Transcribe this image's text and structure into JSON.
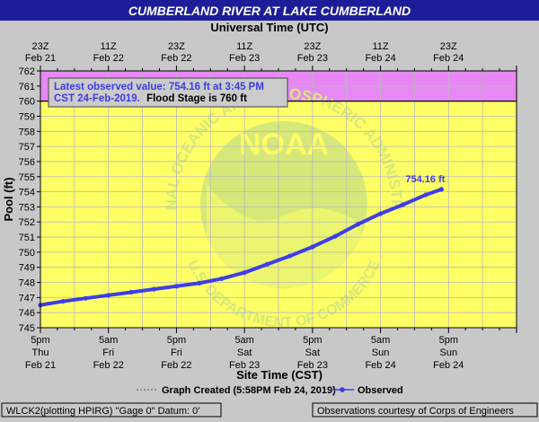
{
  "colors": {
    "page_bg": "#c8c8c8",
    "title_bar": "#1d1d99",
    "title_text": "#ffffff",
    "plot_bg": "#ffff66",
    "flood_band": "#e788f4",
    "series": "#3d3de8",
    "grid": "#b9b9b9",
    "noaa_watermark": "#d6e87a",
    "flood_line": "#000000"
  },
  "chart_data": {
    "type": "line",
    "title": "CUMBERLAND RIVER AT LAKE CUMBERLAND",
    "top_axis_title": "Universal Time (UTC)",
    "xlabel": "Site Time (CST)",
    "ylabel": "Pool (ft)",
    "ylim": [
      745,
      762
    ],
    "yticks": [
      745,
      746,
      747,
      748,
      749,
      750,
      751,
      752,
      753,
      754,
      755,
      756,
      757,
      758,
      759,
      760,
      761,
      762
    ],
    "xlim_hours": [
      0,
      84
    ],
    "x_units": "hours since Thu Feb 21 5pm CST",
    "bottom_ticks": [
      {
        "hour": 0,
        "time": "5pm",
        "day": "Thu",
        "date": "Feb 21"
      },
      {
        "hour": 12,
        "time": "5am",
        "day": "Fri",
        "date": "Feb 22"
      },
      {
        "hour": 24,
        "time": "5pm",
        "day": "Fri",
        "date": "Feb 22"
      },
      {
        "hour": 36,
        "time": "5am",
        "day": "Sat",
        "date": "Feb 23"
      },
      {
        "hour": 48,
        "time": "5pm",
        "day": "Sat",
        "date": "Feb 23"
      },
      {
        "hour": 60,
        "time": "5am",
        "day": "Sun",
        "date": "Feb 24"
      },
      {
        "hour": 72,
        "time": "5pm",
        "day": "Sun",
        "date": "Feb 24"
      }
    ],
    "top_ticks": [
      {
        "hour": 0,
        "time": "23Z",
        "date": "Feb 21"
      },
      {
        "hour": 12,
        "time": "11Z",
        "date": "Feb 22"
      },
      {
        "hour": 24,
        "time": "23Z",
        "date": "Feb 22"
      },
      {
        "hour": 36,
        "time": "11Z",
        "date": "Feb 23"
      },
      {
        "hour": 48,
        "time": "23Z",
        "date": "Feb 23"
      },
      {
        "hour": 60,
        "time": "11Z",
        "date": "Feb 24"
      },
      {
        "hour": 72,
        "time": "23Z",
        "date": "Feb 24"
      }
    ],
    "flood_stage": 760,
    "series": [
      {
        "name": "Observed",
        "x": [
          0,
          4,
          8,
          12,
          16,
          20,
          24,
          28,
          32,
          36,
          40,
          44,
          48,
          52,
          56,
          60,
          64,
          68,
          70.75
        ],
        "values": [
          746.5,
          746.75,
          746.95,
          747.15,
          747.35,
          747.55,
          747.75,
          747.95,
          748.25,
          748.65,
          749.2,
          749.75,
          750.35,
          751.05,
          751.85,
          752.55,
          753.15,
          753.8,
          754.16
        ]
      }
    ],
    "last_value_label": "754.16 ft",
    "info_box": {
      "line1": "Latest observed value: 754.16 ft at 3:45 PM",
      "line2_prefix": "CST 24-Feb-2019.",
      "line2_flood": "Flood Stage is 760 ft"
    },
    "legend": {
      "created": "Graph Created (5:58PM Feb 24, 2019)",
      "observed": "Observed"
    }
  },
  "footer": {
    "left": "WLCK2(plotting HPIRG) \"Gage 0\" Datum: 0'",
    "right": "Observations courtesy of Corps of Engineers"
  },
  "watermark": {
    "logo_text": "NOAA",
    "ring_text": "NATIONAL OCEANIC AND ATMOSPHERIC ADMINISTRATION",
    "bottom_text": "U.S. DEPARTMENT OF COMMERCE"
  }
}
